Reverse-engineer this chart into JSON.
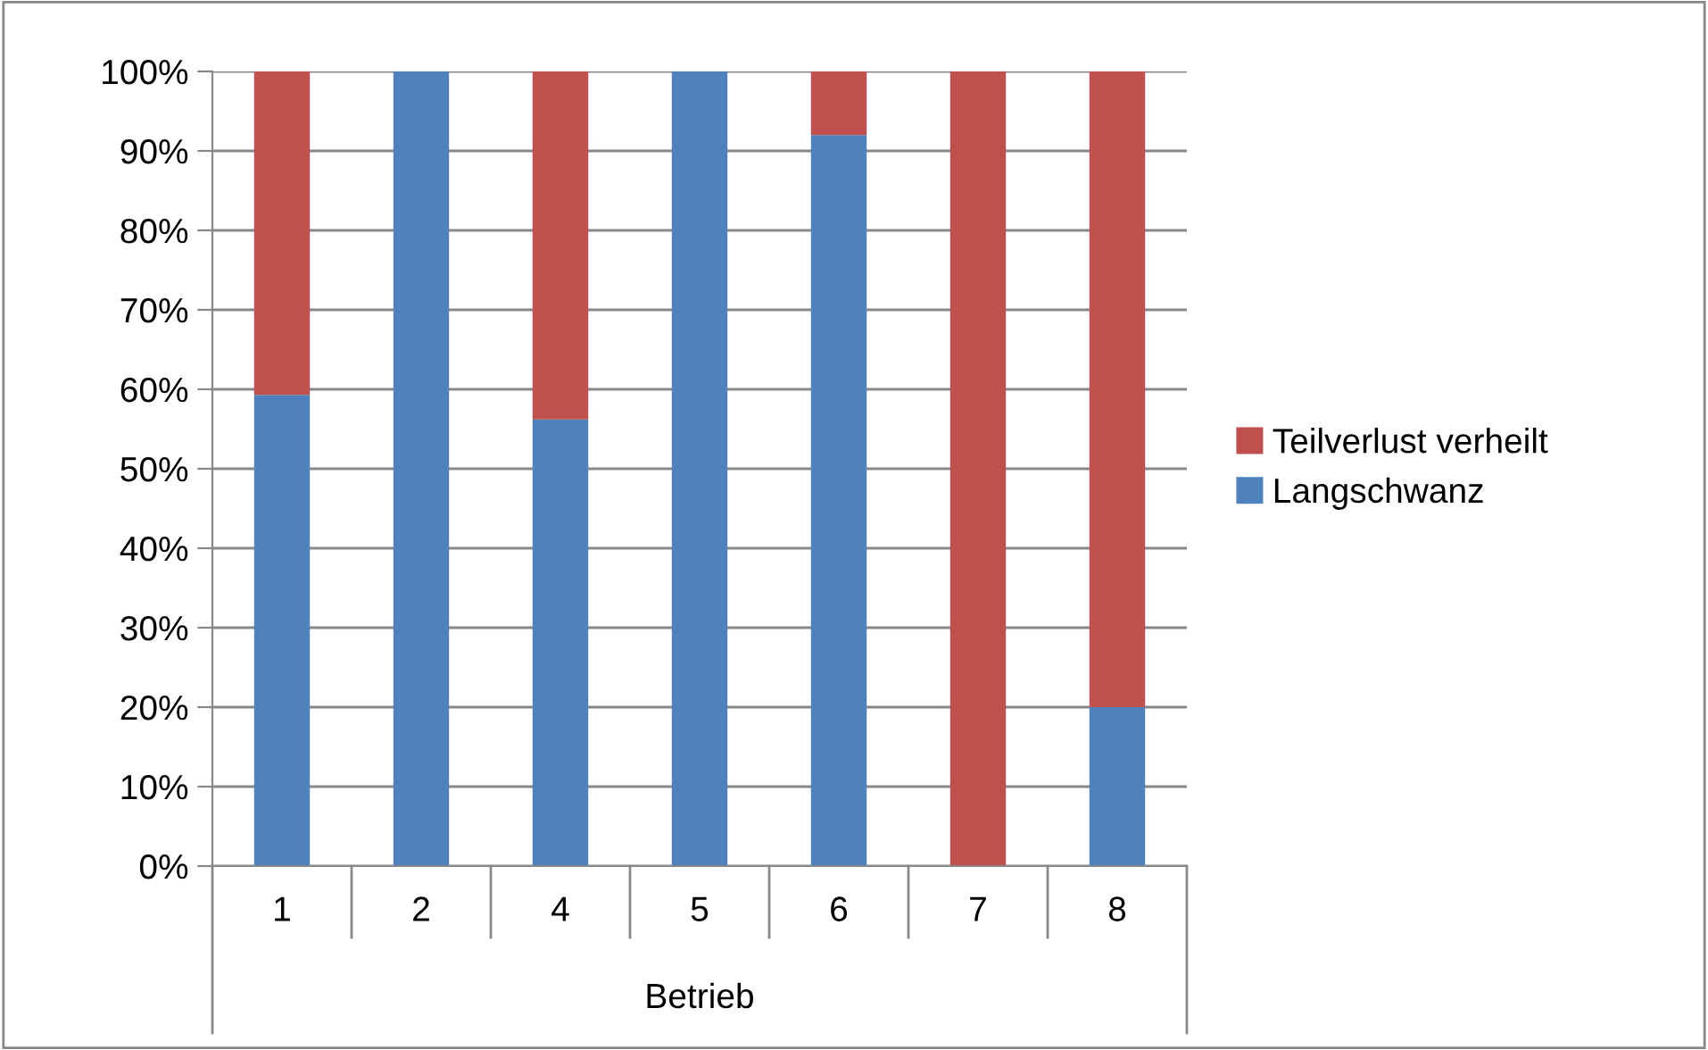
{
  "chart_data": {
    "type": "bar",
    "stacked": true,
    "xlabel": "Betrieb",
    "categories": [
      "1",
      "2",
      "4",
      "5",
      "6",
      "7",
      "8"
    ],
    "series": [
      {
        "name": "Langschwanz",
        "color": "#4f81bd",
        "values": [
          59.3,
          100,
          56.2,
          100,
          92,
          0,
          20
        ]
      },
      {
        "name": "Teilverlust verheilt",
        "color": "#c0504d",
        "values": [
          40.7,
          0,
          43.8,
          0,
          8,
          100,
          80
        ]
      }
    ],
    "ylim": [
      0,
      100
    ],
    "yticks": [
      {
        "value": 0,
        "label": "0%"
      },
      {
        "value": 10,
        "label": "10%"
      },
      {
        "value": 20,
        "label": "20%"
      },
      {
        "value": 30,
        "label": "30%"
      },
      {
        "value": 40,
        "label": "40%"
      },
      {
        "value": 50,
        "label": "50%"
      },
      {
        "value": 60,
        "label": "60%"
      },
      {
        "value": 70,
        "label": "70%"
      },
      {
        "value": 80,
        "label": "80%"
      },
      {
        "value": 90,
        "label": "90%"
      },
      {
        "value": 100,
        "label": "100%"
      }
    ],
    "grid": "y",
    "legend": "right"
  }
}
